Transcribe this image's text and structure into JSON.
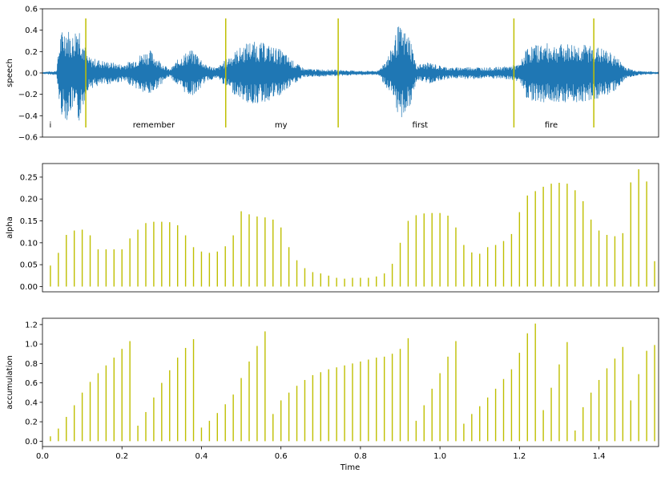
{
  "colors": {
    "speech": "#1f77b4",
    "stems": "#bfbf00",
    "axes": "#000000"
  },
  "chart_data": [
    {
      "type": "line",
      "title": "",
      "ylabel": "speech",
      "xlabel": "",
      "xlim": [
        0.0,
        1.55
      ],
      "ylim": [
        -0.6,
        0.6
      ],
      "yticks": [
        -0.6,
        -0.4,
        -0.2,
        0.0,
        0.2,
        0.4,
        0.6
      ],
      "ytick_labels": [
        "−0.6",
        "−0.4",
        "−0.2",
        "0.0",
        "0.2",
        "0.4",
        "0.6"
      ],
      "grid": false,
      "series": [
        {
          "style": "waveform",
          "envelope": [
            [
              0.0,
              0.01
            ],
            [
              0.035,
              0.02
            ],
            [
              0.045,
              0.38
            ],
            [
              0.06,
              0.45
            ],
            [
              0.075,
              0.35
            ],
            [
              0.09,
              0.5
            ],
            [
              0.105,
              0.28
            ],
            [
              0.115,
              0.15
            ],
            [
              0.16,
              0.11
            ],
            [
              0.19,
              0.09
            ],
            [
              0.2,
              0.08
            ],
            [
              0.225,
              0.12
            ],
            [
              0.255,
              0.2
            ],
            [
              0.27,
              0.22
            ],
            [
              0.295,
              0.12
            ],
            [
              0.32,
              0.03
            ],
            [
              0.345,
              0.15
            ],
            [
              0.37,
              0.22
            ],
            [
              0.39,
              0.19
            ],
            [
              0.41,
              0.08
            ],
            [
              0.44,
              0.05
            ],
            [
              0.475,
              0.18
            ],
            [
              0.52,
              0.3
            ],
            [
              0.56,
              0.28
            ],
            [
              0.6,
              0.22
            ],
            [
              0.635,
              0.1
            ],
            [
              0.66,
              0.04
            ],
            [
              0.74,
              0.03
            ],
            [
              0.8,
              0.02
            ],
            [
              0.845,
              0.02
            ],
            [
              0.875,
              0.2
            ],
            [
              0.895,
              0.45
            ],
            [
              0.91,
              0.4
            ],
            [
              0.925,
              0.35
            ],
            [
              0.94,
              0.08
            ],
            [
              0.975,
              0.1
            ],
            [
              1.0,
              0.07
            ],
            [
              1.03,
              0.05
            ],
            [
              1.08,
              0.06
            ],
            [
              1.12,
              0.05
            ],
            [
              1.16,
              0.06
            ],
            [
              1.2,
              0.08
            ],
            [
              1.22,
              0.25
            ],
            [
              1.26,
              0.28
            ],
            [
              1.3,
              0.27
            ],
            [
              1.34,
              0.28
            ],
            [
              1.38,
              0.26
            ],
            [
              1.41,
              0.23
            ],
            [
              1.44,
              0.17
            ],
            [
              1.47,
              0.05
            ],
            [
              1.5,
              0.02
            ],
            [
              1.55,
              0.01
            ]
          ]
        }
      ],
      "boundaries": [
        0.109,
        0.461,
        0.744,
        1.186,
        1.387
      ],
      "boundary_range": [
        -0.51,
        0.51
      ],
      "words": [
        {
          "x": 0.02,
          "label": "i"
        },
        {
          "x": 0.28,
          "label": "remember"
        },
        {
          "x": 0.6,
          "label": "my"
        },
        {
          "x": 0.95,
          "label": "first"
        },
        {
          "x": 1.28,
          "label": "fire"
        }
      ]
    },
    {
      "type": "bar",
      "style": "stem",
      "title": "",
      "ylabel": "alpha",
      "xlabel": "",
      "xlim": [
        0.0,
        1.55
      ],
      "ylim": [
        -0.012,
        0.281
      ],
      "yticks": [
        0.0,
        0.05,
        0.1,
        0.15,
        0.2,
        0.25
      ],
      "ytick_labels": [
        "0.00",
        "0.05",
        "0.10",
        "0.15",
        "0.20",
        "0.25"
      ],
      "grid": false,
      "x": [
        0.02,
        0.04,
        0.06,
        0.08,
        0.1,
        0.12,
        0.14,
        0.16,
        0.18,
        0.2,
        0.22,
        0.24,
        0.26,
        0.28,
        0.3,
        0.32,
        0.34,
        0.36,
        0.38,
        0.4,
        0.42,
        0.44,
        0.46,
        0.48,
        0.5,
        0.52,
        0.54,
        0.56,
        0.58,
        0.6,
        0.62,
        0.64,
        0.66,
        0.68,
        0.7,
        0.72,
        0.74,
        0.76,
        0.78,
        0.8,
        0.82,
        0.84,
        0.86,
        0.88,
        0.9,
        0.92,
        0.94,
        0.96,
        0.98,
        1.0,
        1.02,
        1.04,
        1.06,
        1.08,
        1.1,
        1.12,
        1.14,
        1.16,
        1.18,
        1.2,
        1.22,
        1.24,
        1.26,
        1.28,
        1.3,
        1.32,
        1.34,
        1.36,
        1.38,
        1.4,
        1.42,
        1.44,
        1.46,
        1.48,
        1.5,
        1.52,
        1.54
      ],
      "values": [
        0.048,
        0.077,
        0.118,
        0.128,
        0.13,
        0.117,
        0.085,
        0.085,
        0.085,
        0.085,
        0.11,
        0.13,
        0.145,
        0.148,
        0.148,
        0.147,
        0.14,
        0.117,
        0.09,
        0.08,
        0.077,
        0.08,
        0.092,
        0.117,
        0.172,
        0.165,
        0.16,
        0.158,
        0.153,
        0.135,
        0.09,
        0.06,
        0.042,
        0.033,
        0.03,
        0.025,
        0.02,
        0.018,
        0.02,
        0.02,
        0.02,
        0.023,
        0.03,
        0.052,
        0.1,
        0.15,
        0.163,
        0.167,
        0.168,
        0.168,
        0.162,
        0.135,
        0.095,
        0.078,
        0.075,
        0.09,
        0.095,
        0.104,
        0.12,
        0.17,
        0.208,
        0.218,
        0.228,
        0.235,
        0.237,
        0.235,
        0.22,
        0.195,
        0.153,
        0.128,
        0.118,
        0.115,
        0.122,
        0.238,
        0.268,
        0.24,
        0.058
      ]
    },
    {
      "type": "bar",
      "style": "stem",
      "title": "",
      "ylabel": "accumulation",
      "xlabel": "Time",
      "xlim": [
        0.0,
        1.55
      ],
      "ylim": [
        -0.055,
        1.265
      ],
      "yticks": [
        0.0,
        0.2,
        0.4,
        0.6,
        0.8,
        1.0,
        1.2
      ],
      "ytick_labels": [
        "0.0",
        "0.2",
        "0.4",
        "0.6",
        "0.8",
        "1.0",
        "1.2"
      ],
      "xticks": [
        0.0,
        0.2,
        0.4,
        0.6,
        0.8,
        1.0,
        1.2,
        1.4
      ],
      "xtick_labels": [
        "0.0",
        "0.2",
        "0.4",
        "0.6",
        "0.8",
        "1.0",
        "1.2",
        "1.4"
      ],
      "grid": false,
      "x": [
        0.02,
        0.04,
        0.06,
        0.08,
        0.1,
        0.12,
        0.14,
        0.16,
        0.18,
        0.2,
        0.22,
        0.24,
        0.26,
        0.28,
        0.3,
        0.32,
        0.34,
        0.36,
        0.38,
        0.4,
        0.42,
        0.44,
        0.46,
        0.48,
        0.5,
        0.52,
        0.54,
        0.56,
        0.58,
        0.6,
        0.62,
        0.64,
        0.66,
        0.68,
        0.7,
        0.72,
        0.74,
        0.76,
        0.78,
        0.8,
        0.82,
        0.84,
        0.86,
        0.88,
        0.9,
        0.92,
        0.94,
        0.96,
        0.98,
        1.0,
        1.02,
        1.04,
        1.06,
        1.08,
        1.1,
        1.12,
        1.14,
        1.16,
        1.18,
        1.2,
        1.22,
        1.24,
        1.26,
        1.28,
        1.3,
        1.32,
        1.34,
        1.36,
        1.38,
        1.4,
        1.42,
        1.44,
        1.46,
        1.48,
        1.5,
        1.52,
        1.54
      ],
      "values": [
        0.05,
        0.13,
        0.25,
        0.37,
        0.5,
        0.61,
        0.7,
        0.78,
        0.86,
        0.95,
        1.03,
        0.16,
        0.3,
        0.45,
        0.6,
        0.73,
        0.86,
        0.96,
        1.05,
        0.14,
        0.21,
        0.29,
        0.38,
        0.48,
        0.65,
        0.82,
        0.98,
        1.13,
        0.28,
        0.42,
        0.5,
        0.57,
        0.63,
        0.68,
        0.71,
        0.74,
        0.76,
        0.78,
        0.8,
        0.82,
        0.84,
        0.86,
        0.87,
        0.9,
        0.95,
        1.06,
        0.21,
        0.37,
        0.54,
        0.7,
        0.87,
        1.03,
        0.18,
        0.28,
        0.36,
        0.45,
        0.54,
        0.64,
        0.74,
        0.91,
        1.11,
        1.21,
        0.32,
        0.55,
        0.79,
        1.02,
        0.11,
        0.35,
        0.5,
        0.63,
        0.75,
        0.85,
        0.97,
        0.42,
        0.69,
        0.93,
        0.99
      ]
    }
  ]
}
